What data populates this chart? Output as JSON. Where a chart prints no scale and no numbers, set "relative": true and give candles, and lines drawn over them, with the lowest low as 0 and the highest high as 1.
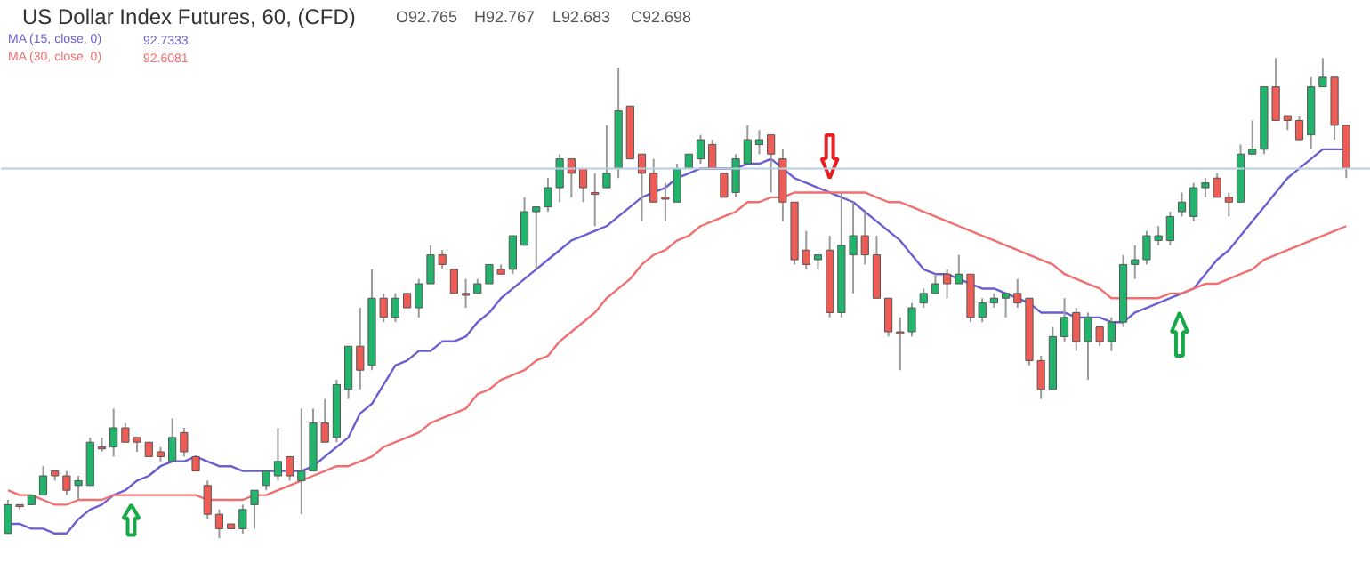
{
  "chart_data": {
    "type": "candlestick",
    "title": "US Dollar Index Futures, 60, (CFD)",
    "annotations": [
      "O92.765",
      "H92.767",
      "L92.683",
      "C92.698",
      "92.7333",
      "92.6081"
    ],
    "relative": true,
    "legend": "top left",
    "colors": [
      "#22b36c",
      "#ef5b55",
      "#22b36c",
      "#22b36c",
      "#ef5b55",
      "#ef5b55",
      "#22b36c",
      "#22b36c",
      "#ef5b55",
      "#22b36c",
      "#ef5b55",
      "#ef5b55",
      "#ef5b55",
      "#ef5b55",
      "#22b36c",
      "#ef5b55",
      "#ef5b55",
      "#ef5b55",
      "#ef5b55",
      "#ef5b55",
      "#22b36c",
      "#22b36c",
      "#22b36c",
      "#22b36c",
      "#ef5b55",
      "#22b36c",
      "#22b36c",
      "#ef5b55",
      "#22b36c",
      "#22b36c",
      "#ef5b55",
      "#22b36c",
      "#ef5b55",
      "#22b36c",
      "#ef5b55",
      "#22b36c",
      "#22b36c",
      "#ef5b55",
      "#ef5b55",
      "#ef5b55",
      "#22b36c",
      "#22b36c",
      "#ef5b55",
      "#22b36c",
      "#22b36c",
      "#22b36c",
      "#22b36c",
      "#22b36c",
      "#ef5b55",
      "#ef5b55",
      "#ef5b55",
      "#22b36c",
      "#22b36c",
      "#ef5b55",
      "#ef5b55",
      "#ef5b55",
      "#ef5b55",
      "#22b36c",
      "#22b36c",
      "#22b36c",
      "#ef5b55",
      "#ef5b55",
      "#22b36c",
      "#22b36c",
      "#22b36c",
      "#ef5b55",
      "#ef5b55",
      "#ef5b55",
      "#ef5b55",
      "#22b36c",
      "#ef5b55",
      "#22b36c",
      "#22b36c",
      "#ef5b55",
      "#ef5b55",
      "#ef5b55",
      "#ef5b55",
      "#22b36c",
      "#22b36c",
      "#22b36c",
      "#ef5b55",
      "#22b36c",
      "#ef5b55",
      "#22b36c",
      "#22b36c",
      "#22b36c",
      "#ef5b55",
      "#ef5b55",
      "#ef5b55",
      "#22b36c",
      "#22b36c",
      "#ef5b55",
      "#22b36c",
      "#ef5b55",
      "#22b36c",
      "#22b36c",
      "#22b36c",
      "#22b36c",
      "#22b36c",
      "#22b36c",
      "#22b36c",
      "#22b36c",
      "#22b36c",
      "#ef5b55",
      "#ef5b55",
      "#22b36c",
      "#22b36c",
      "#22b36c",
      "#ef5b55",
      "#ef5b55",
      "#ef5b55",
      "#22b36c",
      "#22b36c",
      "#ef5b55",
      "#ef5b55"
    ],
    "categories": [
      null,
      null,
      null,
      null,
      null,
      null,
      null,
      null,
      null,
      null,
      null,
      null,
      null,
      null,
      null,
      null,
      null,
      null,
      null,
      null,
      null,
      null,
      null,
      null,
      null,
      null,
      null,
      null,
      null,
      null,
      null,
      null,
      null,
      null,
      null,
      null,
      null,
      null,
      null,
      null,
      null,
      null,
      null,
      null,
      null,
      null,
      null,
      null,
      null,
      null,
      null,
      null,
      null,
      null,
      null,
      null,
      null,
      null,
      null,
      null,
      null,
      null,
      null,
      null,
      null,
      null,
      null,
      null,
      null,
      null,
      null,
      null,
      null,
      null,
      null,
      null,
      null,
      null,
      null,
      null,
      null,
      null,
      null,
      null,
      null,
      null,
      null,
      null,
      null,
      null,
      null,
      null,
      null,
      null,
      null,
      null,
      null,
      null,
      null,
      null,
      null,
      null,
      null,
      null,
      null,
      null,
      null,
      null,
      null,
      null,
      null,
      null,
      null,
      null,
      null
    ],
    "ohlc": [
      [
        0.01,
        0.08,
        0.01,
        0.07
      ],
      [
        0.07,
        0.07,
        0.06,
        0.07
      ],
      [
        0.07,
        0.09,
        0.07,
        0.09
      ],
      [
        0.09,
        0.15,
        0.09,
        0.13
      ],
      [
        0.14,
        0.14,
        0.12,
        0.13
      ],
      [
        0.13,
        0.14,
        0.09,
        0.1
      ],
      [
        0.11,
        0.13,
        0.08,
        0.12
      ],
      [
        0.11,
        0.21,
        0.11,
        0.2
      ],
      [
        0.19,
        0.21,
        0.18,
        0.19
      ],
      [
        0.19,
        0.27,
        0.17,
        0.23
      ],
      [
        0.23,
        0.24,
        0.2,
        0.2
      ],
      [
        0.21,
        0.21,
        0.18,
        0.2
      ],
      [
        0.2,
        0.2,
        0.17,
        0.17
      ],
      [
        0.18,
        0.19,
        0.16,
        0.17
      ],
      [
        0.16,
        0.25,
        0.16,
        0.21
      ],
      [
        0.22,
        0.23,
        0.17,
        0.18
      ],
      [
        0.17,
        0.17,
        0.14,
        0.14
      ],
      [
        0.11,
        0.12,
        0.04,
        0.05
      ],
      [
        0.05,
        0.06,
        0,
        0.02
      ],
      [
        0.03,
        0.03,
        0.02,
        0.02
      ],
      [
        0.02,
        0.07,
        0.01,
        0.06
      ],
      [
        0.07,
        0.1,
        0.02,
        0.1
      ],
      [
        0.11,
        0.14,
        0.1,
        0.14
      ],
      [
        0.13,
        0.23,
        0.12,
        0.16
      ],
      [
        0.17,
        0.17,
        0.12,
        0.13
      ],
      [
        0.12,
        0.27,
        0.05,
        0.14
      ],
      [
        0.14,
        0.27,
        0.14,
        0.24
      ],
      [
        0.24,
        0.29,
        0.2,
        0.2
      ],
      [
        0.21,
        0.33,
        0.2,
        0.32
      ],
      [
        0.31,
        0.4,
        0.29,
        0.4
      ],
      [
        0.4,
        0.48,
        0.31,
        0.35
      ],
      [
        0.36,
        0.56,
        0.35,
        0.5
      ],
      [
        0.5,
        0.51,
        0.45,
        0.46
      ],
      [
        0.46,
        0.51,
        0.45,
        0.5
      ],
      [
        0.51,
        0.51,
        0.48,
        0.48
      ],
      [
        0.48,
        0.54,
        0.46,
        0.53
      ],
      [
        0.53,
        0.61,
        0.53,
        0.59
      ],
      [
        0.59,
        0.6,
        0.56,
        0.57
      ],
      [
        0.56,
        0.56,
        0.51,
        0.51
      ],
      [
        0.51,
        0.54,
        0.48,
        0.51
      ],
      [
        0.51,
        0.54,
        0.51,
        0.53
      ],
      [
        0.53,
        0.57,
        0.53,
        0.57
      ],
      [
        0.56,
        0.57,
        0.55,
        0.55
      ],
      [
        0.56,
        0.63,
        0.55,
        0.63
      ],
      [
        0.61,
        0.71,
        0.61,
        0.68
      ],
      [
        0.68,
        0.69,
        0.56,
        0.69
      ],
      [
        0.69,
        0.75,
        0.68,
        0.73
      ],
      [
        0.73,
        0.8,
        0.7,
        0.79
      ],
      [
        0.79,
        0.79,
        0.71,
        0.76
      ],
      [
        0.77,
        0.77,
        0.7,
        0.73
      ],
      [
        0.72,
        0.76,
        0.65,
        0.72
      ],
      [
        0.73,
        0.86,
        0.73,
        0.76
      ],
      [
        0.77,
        0.98,
        0.75,
        0.89
      ],
      [
        0.9,
        0.9,
        0.79,
        0.79
      ],
      [
        0.8,
        0.8,
        0.66,
        0.76
      ],
      [
        0.76,
        0.79,
        0.7,
        0.7
      ],
      [
        0.71,
        0.74,
        0.66,
        0.71
      ],
      [
        0.7,
        0.78,
        0.7,
        0.77
      ],
      [
        0.77,
        0.8,
        0.77,
        0.8
      ],
      [
        0.79,
        0.84,
        0.78,
        0.83
      ],
      [
        0.82,
        0.83,
        0.77,
        0.77
      ],
      [
        0.76,
        0.76,
        0.71,
        0.71
      ],
      [
        0.72,
        0.8,
        0.71,
        0.79
      ],
      [
        0.78,
        0.86,
        0.78,
        0.83
      ],
      [
        0.82,
        0.85,
        0.8,
        0.83
      ],
      [
        0.84,
        0.84,
        0.72,
        0.8
      ],
      [
        0.79,
        0.81,
        0.66,
        0.7
      ],
      [
        0.7,
        0.7,
        0.57,
        0.58
      ],
      [
        0.6,
        0.64,
        0.56,
        0.57
      ],
      [
        0.58,
        0.59,
        0.56,
        0.59
      ],
      [
        0.6,
        0.63,
        0.46,
        0.47
      ],
      [
        0.47,
        0.72,
        0.46,
        0.61
      ],
      [
        0.59,
        0.7,
        0.51,
        0.63
      ],
      [
        0.63,
        0.68,
        0.57,
        0.59
      ],
      [
        0.59,
        0.63,
        0.5,
        0.5
      ],
      [
        0.5,
        0.5,
        0.42,
        0.43
      ],
      [
        0.43,
        0.46,
        0.35,
        0.43
      ],
      [
        0.43,
        0.49,
        0.42,
        0.48
      ],
      [
        0.49,
        0.52,
        0.48,
        0.51
      ],
      [
        0.51,
        0.55,
        0.51,
        0.53
      ],
      [
        0.55,
        0.56,
        0.5,
        0.53
      ],
      [
        0.53,
        0.59,
        0.53,
        0.55
      ],
      [
        0.55,
        0.55,
        0.45,
        0.46
      ],
      [
        0.46,
        0.5,
        0.45,
        0.49
      ],
      [
        0.49,
        0.51,
        0.48,
        0.5
      ],
      [
        0.5,
        0.51,
        0.46,
        0.51
      ],
      [
        0.51,
        0.54,
        0.48,
        0.49
      ],
      [
        0.5,
        0.5,
        0.36,
        0.37
      ],
      [
        0.37,
        0.38,
        0.29,
        0.31
      ],
      [
        0.31,
        0.44,
        0.31,
        0.42
      ],
      [
        0.42,
        0.5,
        0.41,
        0.46
      ],
      [
        0.47,
        0.48,
        0.39,
        0.41
      ],
      [
        0.41,
        0.47,
        0.33,
        0.46
      ],
      [
        0.44,
        0.44,
        0.4,
        0.41
      ],
      [
        0.41,
        0.46,
        0.39,
        0.45
      ],
      [
        0.45,
        0.59,
        0.44,
        0.57
      ],
      [
        0.57,
        0.61,
        0.54,
        0.58
      ],
      [
        0.58,
        0.64,
        0.57,
        0.63
      ],
      [
        0.62,
        0.65,
        0.61,
        0.63
      ],
      [
        0.62,
        0.68,
        0.61,
        0.67
      ],
      [
        0.68,
        0.72,
        0.67,
        0.7
      ],
      [
        0.67,
        0.74,
        0.66,
        0.73
      ],
      [
        0.73,
        0.75,
        0.71,
        0.74
      ],
      [
        0.75,
        0.76,
        0.71,
        0.71
      ],
      [
        0.71,
        0.72,
        0.67,
        0.7
      ],
      [
        0.7,
        0.82,
        0.7,
        0.8
      ],
      [
        0.8,
        0.87,
        0.8,
        0.81
      ],
      [
        0.81,
        0.94,
        0.8,
        0.94
      ],
      [
        0.94,
        1.0,
        0.87,
        0.87
      ],
      [
        0.88,
        0.88,
        0.85,
        0.87
      ],
      [
        0.87,
        0.88,
        0.83,
        0.83
      ],
      [
        0.84,
        0.96,
        0.81,
        0.94
      ],
      [
        0.94,
        1.0,
        0.94,
        0.96
      ],
      [
        0.96,
        0.96,
        0.83,
        0.86
      ],
      [
        0.86,
        0.86,
        0.75,
        0.77
      ]
    ],
    "series": [
      {
        "type": "line",
        "name": "MA (15, close, 0)",
        "color": "#6a5fd0",
        "values": [
          0.03,
          0.03,
          0.02,
          0.02,
          0.01,
          0.01,
          0.04,
          0.06,
          0.07,
          0.09,
          0.1,
          0.12,
          0.13,
          0.15,
          0.16,
          0.16,
          0.17,
          0.16,
          0.15,
          0.15,
          0.14,
          0.14,
          0.14,
          0.14,
          0.14,
          0.14,
          0.15,
          0.17,
          0.19,
          0.21,
          0.26,
          0.28,
          0.32,
          0.36,
          0.37,
          0.39,
          0.39,
          0.41,
          0.41,
          0.42,
          0.45,
          0.47,
          0.5,
          0.52,
          0.54,
          0.56,
          0.58,
          0.6,
          0.62,
          0.63,
          0.64,
          0.65,
          0.67,
          0.69,
          0.71,
          0.72,
          0.73,
          0.75,
          0.76,
          0.77,
          0.77,
          0.77,
          0.77,
          0.78,
          0.78,
          0.79,
          0.77,
          0.75,
          0.74,
          0.73,
          0.72,
          0.71,
          0.7,
          0.68,
          0.66,
          0.64,
          0.62,
          0.59,
          0.56,
          0.55,
          0.55,
          0.54,
          0.53,
          0.52,
          0.52,
          0.51,
          0.5,
          0.49,
          0.47,
          0.47,
          0.47,
          0.46,
          0.46,
          0.46,
          0.45,
          0.45,
          0.47,
          0.48,
          0.49,
          0.5,
          0.51,
          0.52,
          0.55,
          0.58,
          0.6,
          0.63,
          0.66,
          0.69,
          0.72,
          0.75,
          0.77,
          0.79,
          0.81,
          0.81,
          0.81
        ]
      },
      {
        "type": "line",
        "name": "MA (30, close, 0)",
        "color": "#f07070",
        "values": [
          0.1,
          0.09,
          0.09,
          0.08,
          0.07,
          0.07,
          0.08,
          0.08,
          0.08,
          0.09,
          0.09,
          0.09,
          0.09,
          0.09,
          0.09,
          0.09,
          0.09,
          0.08,
          0.08,
          0.08,
          0.08,
          0.09,
          0.09,
          0.1,
          0.11,
          0.12,
          0.13,
          0.14,
          0.15,
          0.15,
          0.16,
          0.17,
          0.19,
          0.2,
          0.21,
          0.22,
          0.24,
          0.25,
          0.26,
          0.27,
          0.3,
          0.31,
          0.33,
          0.34,
          0.35,
          0.37,
          0.38,
          0.41,
          0.43,
          0.45,
          0.47,
          0.5,
          0.52,
          0.54,
          0.57,
          0.59,
          0.6,
          0.62,
          0.63,
          0.65,
          0.66,
          0.67,
          0.68,
          0.7,
          0.7,
          0.71,
          0.71,
          0.72,
          0.72,
          0.72,
          0.72,
          0.72,
          0.72,
          0.72,
          0.71,
          0.7,
          0.7,
          0.69,
          0.68,
          0.67,
          0.66,
          0.65,
          0.64,
          0.63,
          0.62,
          0.61,
          0.6,
          0.59,
          0.58,
          0.57,
          0.55,
          0.54,
          0.53,
          0.52,
          0.5,
          0.5,
          0.5,
          0.5,
          0.5,
          0.51,
          0.51,
          0.52,
          0.53,
          0.53,
          0.54,
          0.55,
          0.56,
          0.58,
          0.59,
          0.6,
          0.61,
          0.62,
          0.63,
          0.64,
          0.65
        ]
      }
    ],
    "ref_lines": [
      {
        "axis": "y",
        "value": 0.77,
        "color": "#b7cde3"
      }
    ]
  }
}
